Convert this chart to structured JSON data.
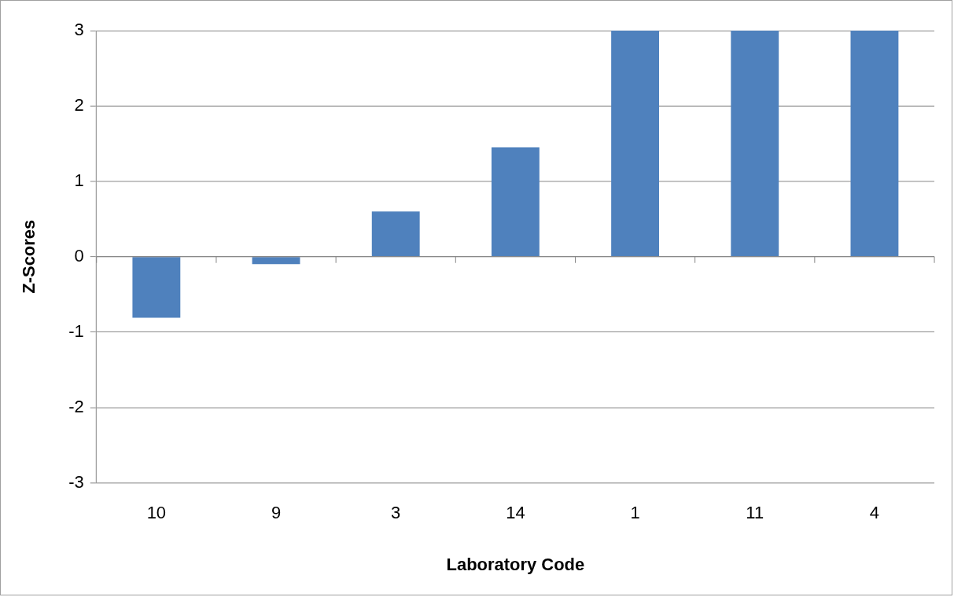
{
  "chart_data": {
    "type": "bar",
    "xlabel": "Laboratory Code",
    "ylabel": "Z-Scores",
    "categories": [
      "10",
      "9",
      "3",
      "14",
      "1",
      "11",
      "4"
    ],
    "values": [
      -0.81,
      -0.1,
      0.6,
      1.45,
      3,
      3,
      3
    ],
    "color": "#4f81bd",
    "ylim": [
      -3,
      3
    ],
    "yticks": [
      -3,
      -2,
      -1,
      0,
      1,
      2,
      3
    ],
    "grid": "y",
    "legend": false
  }
}
